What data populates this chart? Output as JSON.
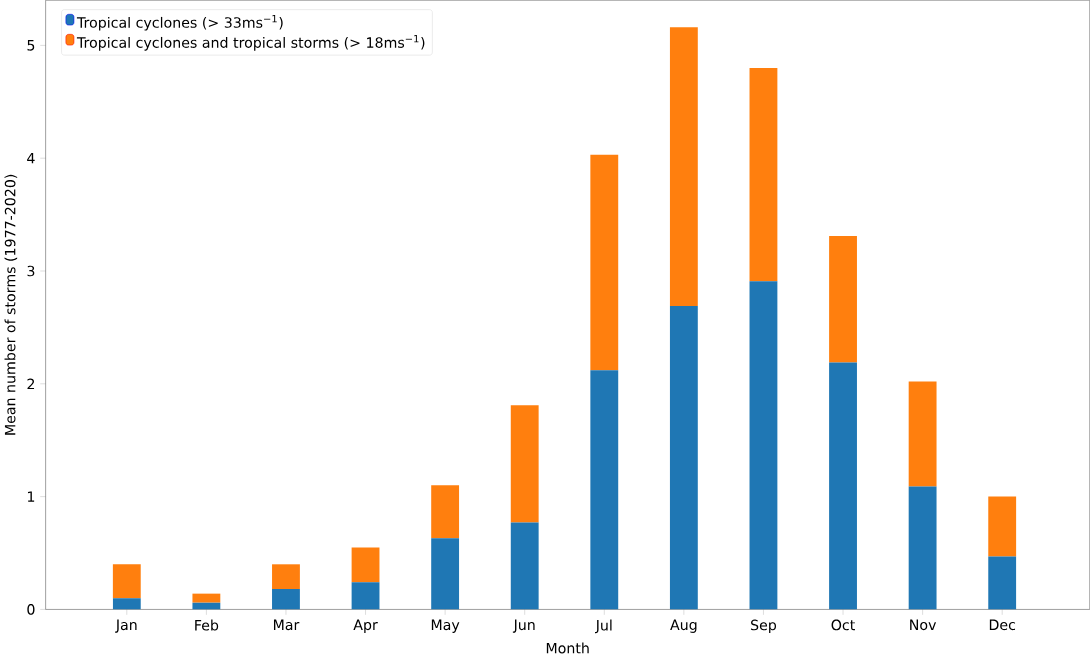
{
  "chart_data": {
    "type": "bar",
    "stacked": true,
    "xlabel": "Month",
    "ylabel": "Mean number of storms (1977-2020)",
    "categories": [
      "Jan",
      "Feb",
      "Mar",
      "Apr",
      "May",
      "Jun",
      "Jul",
      "Aug",
      "Sep",
      "Oct",
      "Nov",
      "Dec"
    ],
    "series": [
      {
        "name": "Tropical cyclones (> 33ms$^{−1}$)",
        "color": "#1f77b4",
        "values": [
          0.1,
          0.06,
          0.18,
          0.24,
          0.63,
          0.77,
          2.12,
          2.69,
          2.91,
          2.19,
          1.09,
          0.47
        ]
      },
      {
        "name": "Tropical cyclones and tropical storms (> 18ms$^{−1}$)",
        "color": "#ff7f0e",
        "values": [
          0.3,
          0.08,
          0.22,
          0.31,
          0.47,
          1.04,
          1.91,
          2.47,
          1.89,
          1.12,
          0.93,
          0.53
        ]
      }
    ],
    "ylim": [
      0,
      5.4
    ],
    "yticks": [
      0,
      1,
      2,
      3,
      4,
      5
    ],
    "legend": "top left"
  }
}
